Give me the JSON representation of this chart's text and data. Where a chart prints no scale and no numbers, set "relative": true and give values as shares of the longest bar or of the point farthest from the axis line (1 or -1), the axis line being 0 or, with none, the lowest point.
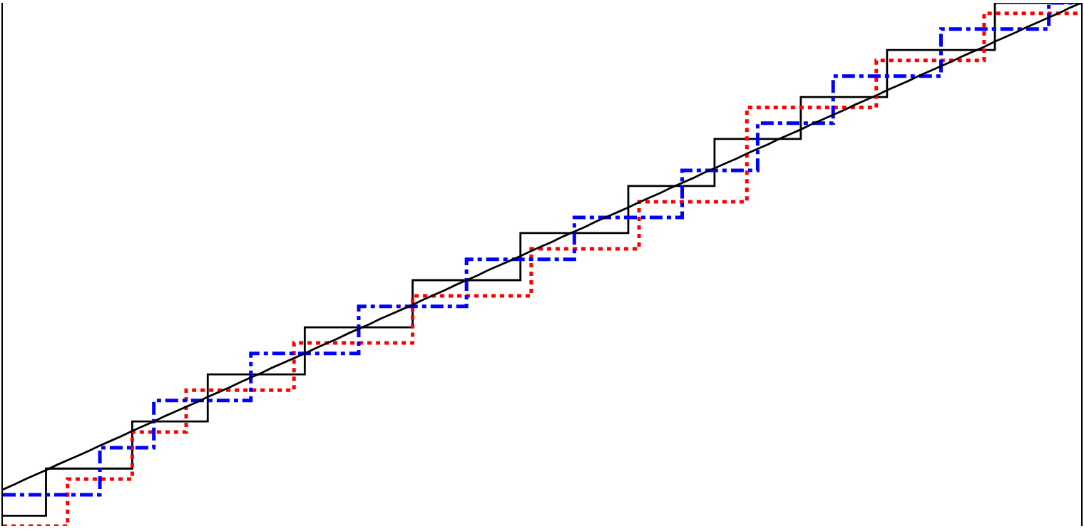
{
  "chart_data": {
    "type": "step",
    "relative": true,
    "marker": "none",
    "categories": [
      null,
      null,
      null,
      null,
      null,
      null,
      null,
      null,
      null,
      null,
      null,
      null,
      null,
      null,
      null,
      null,
      null,
      null,
      null,
      null,
      null,
      null,
      null,
      null,
      null,
      null,
      null,
      null,
      null,
      null,
      null,
      null,
      null,
      null,
      null,
      null,
      null,
      null,
      null,
      null,
      null,
      null,
      null,
      null,
      null,
      null,
      null,
      null,
      null,
      null,
      null,
      null,
      null,
      null,
      null,
      null,
      null,
      null,
      null,
      null,
      null,
      null,
      null,
      null,
      null,
      null,
      null,
      null,
      null,
      null,
      null,
      null,
      null,
      null,
      null,
      null,
      null,
      null,
      null,
      null,
      null,
      null,
      null,
      null,
      null,
      null,
      null,
      null,
      null,
      null,
      null,
      null,
      null,
      null,
      null,
      null,
      null,
      null,
      null,
      null,
      null
    ],
    "series": [
      {
        "color": "#000000",
        "line_style": "solid",
        "values": [
          0.02,
          0.02,
          0.02,
          0.02,
          0.11,
          0.11,
          0.11,
          0.11,
          0.11,
          0.11,
          0.11,
          0.11,
          0.2,
          0.2,
          0.2,
          0.2,
          0.2,
          0.2,
          0.2,
          0.29,
          0.29,
          0.29,
          0.29,
          0.29,
          0.29,
          0.29,
          0.29,
          0.29,
          0.38,
          0.38,
          0.38,
          0.38,
          0.38,
          0.38,
          0.38,
          0.38,
          0.38,
          0.38,
          0.47,
          0.47,
          0.47,
          0.47,
          0.47,
          0.47,
          0.47,
          0.47,
          0.47,
          0.47,
          0.56,
          0.56,
          0.56,
          0.56,
          0.56,
          0.56,
          0.56,
          0.56,
          0.56,
          0.56,
          0.65,
          0.65,
          0.65,
          0.65,
          0.65,
          0.65,
          0.65,
          0.65,
          0.74,
          0.74,
          0.74,
          0.74,
          0.74,
          0.74,
          0.74,
          0.74,
          0.82,
          0.82,
          0.82,
          0.82,
          0.82,
          0.82,
          0.82,
          0.82,
          0.91,
          0.91,
          0.91,
          0.91,
          0.91,
          0.91,
          0.91,
          0.91,
          0.91,
          0.91,
          1,
          1,
          1,
          1,
          1,
          1,
          1,
          1,
          1
        ]
      },
      {
        "color": "#ff0000",
        "line_style": "dotted",
        "values": [
          0,
          0,
          0,
          0,
          0,
          0,
          0.09,
          0.09,
          0.09,
          0.09,
          0.09,
          0.09,
          0.18,
          0.18,
          0.18,
          0.18,
          0.18,
          0.26,
          0.26,
          0.26,
          0.26,
          0.26,
          0.26,
          0.26,
          0.26,
          0.26,
          0.26,
          0.35,
          0.35,
          0.35,
          0.35,
          0.35,
          0.35,
          0.35,
          0.35,
          0.35,
          0.35,
          0.35,
          0.44,
          0.44,
          0.44,
          0.44,
          0.44,
          0.44,
          0.44,
          0.44,
          0.44,
          0.44,
          0.44,
          0.53,
          0.53,
          0.53,
          0.53,
          0.53,
          0.53,
          0.53,
          0.53,
          0.53,
          0.53,
          0.62,
          0.62,
          0.62,
          0.62,
          0.62,
          0.62,
          0.62,
          0.62,
          0.62,
          0.62,
          0.8,
          0.8,
          0.8,
          0.8,
          0.8,
          0.8,
          0.8,
          0.8,
          0.8,
          0.8,
          0.8,
          0.8,
          0.89,
          0.89,
          0.89,
          0.89,
          0.89,
          0.89,
          0.89,
          0.89,
          0.89,
          0.89,
          0.98,
          0.98,
          0.98,
          0.98,
          0.98,
          0.98,
          0.98,
          0.98,
          0.98,
          0.98
        ]
      },
      {
        "color": "#0000ff",
        "line_style": "dashdot",
        "values": [
          0.06,
          0.06,
          0.06,
          0.06,
          0.06,
          0.06,
          0.06,
          0.06,
          0.06,
          0.15,
          0.15,
          0.15,
          0.15,
          0.15,
          0.24,
          0.24,
          0.24,
          0.24,
          0.24,
          0.24,
          0.24,
          0.24,
          0.24,
          0.33,
          0.33,
          0.33,
          0.33,
          0.33,
          0.33,
          0.33,
          0.33,
          0.33,
          0.33,
          0.42,
          0.42,
          0.42,
          0.42,
          0.42,
          0.42,
          0.42,
          0.42,
          0.42,
          0.42,
          0.51,
          0.51,
          0.51,
          0.51,
          0.51,
          0.51,
          0.51,
          0.51,
          0.51,
          0.51,
          0.59,
          0.59,
          0.59,
          0.59,
          0.59,
          0.59,
          0.59,
          0.59,
          0.59,
          0.59,
          0.68,
          0.68,
          0.68,
          0.68,
          0.68,
          0.68,
          0.68,
          0.77,
          0.77,
          0.77,
          0.77,
          0.77,
          0.77,
          0.77,
          0.86,
          0.86,
          0.86,
          0.86,
          0.86,
          0.86,
          0.86,
          0.86,
          0.86,
          0.86,
          0.95,
          0.95,
          0.95,
          0.95,
          0.95,
          0.95,
          0.95,
          0.95,
          0.95,
          0.95,
          1,
          1,
          1,
          1
        ]
      },
      {
        "type": "line",
        "color": "#000000",
        "line_style": "solid",
        "values": [
          0.07,
          0.079,
          0.089,
          0.098,
          0.107,
          0.117,
          0.126,
          0.135,
          0.144,
          0.154,
          0.163,
          0.172,
          0.182,
          0.191,
          0.2,
          0.21,
          0.219,
          0.228,
          0.237,
          0.247,
          0.256,
          0.265,
          0.275,
          0.284,
          0.293,
          0.303,
          0.312,
          0.321,
          0.33,
          0.34,
          0.349,
          0.358,
          0.368,
          0.377,
          0.386,
          0.396,
          0.405,
          0.414,
          0.423,
          0.433,
          0.442,
          0.451,
          0.461,
          0.47,
          0.479,
          0.489,
          0.498,
          0.507,
          0.516,
          0.526,
          0.535,
          0.544,
          0.554,
          0.563,
          0.572,
          0.582,
          0.591,
          0.6,
          0.609,
          0.619,
          0.628,
          0.637,
          0.647,
          0.656,
          0.665,
          0.675,
          0.684,
          0.693,
          0.702,
          0.712,
          0.721,
          0.73,
          0.74,
          0.749,
          0.758,
          0.768,
          0.777,
          0.786,
          0.795,
          0.805,
          0.814,
          0.823,
          0.833,
          0.842,
          0.851,
          0.861,
          0.87,
          0.879,
          0.888,
          0.898,
          0.907,
          0.916,
          0.926,
          0.935,
          0.944,
          0.954,
          0.963,
          0.972,
          0.981,
          0.991,
          1
        ]
      }
    ]
  }
}
